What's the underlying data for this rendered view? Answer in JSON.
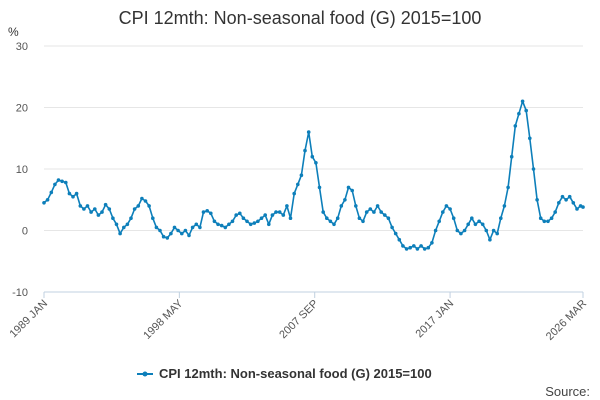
{
  "chart_data": {
    "type": "line",
    "title": "CPI 12mth: Non-seasonal food (G) 2015=100",
    "unit_label": "%",
    "source_label": "Source:",
    "ylim": [
      -10,
      30
    ],
    "y_ticks": [
      "-10",
      "0",
      "10",
      "20",
      "30"
    ],
    "x_range": [
      "1989-01",
      "2026-03"
    ],
    "x_ticks": [
      {
        "label": "1989 JAN",
        "date": "1989-01"
      },
      {
        "label": "1998 MAY",
        "date": "1998-05"
      },
      {
        "label": "2007 SEP",
        "date": "2007-09"
      },
      {
        "label": "2017 JAN",
        "date": "2017-01"
      },
      {
        "label": "2026 MAR",
        "date": "2026-03"
      }
    ],
    "grid": true,
    "legend_position": "bottom",
    "series_color": "#0d7fba",
    "series": [
      {
        "name": "CPI 12mth: Non-seasonal food (G) 2015=100",
        "points": [
          [
            "1989-01",
            4.5
          ],
          [
            "1989-04",
            5.0
          ],
          [
            "1989-07",
            6.2
          ],
          [
            "1989-10",
            7.5
          ],
          [
            "1990-01",
            8.2
          ],
          [
            "1990-04",
            8.0
          ],
          [
            "1990-07",
            7.8
          ],
          [
            "1990-10",
            6.0
          ],
          [
            "1991-01",
            5.5
          ],
          [
            "1991-04",
            6.0
          ],
          [
            "1991-07",
            4.0
          ],
          [
            "1991-10",
            3.5
          ],
          [
            "1992-01",
            4.0
          ],
          [
            "1992-04",
            3.0
          ],
          [
            "1992-07",
            3.5
          ],
          [
            "1992-10",
            2.5
          ],
          [
            "1993-01",
            3.0
          ],
          [
            "1993-04",
            4.2
          ],
          [
            "1993-07",
            3.5
          ],
          [
            "1993-10",
            2.0
          ],
          [
            "1994-01",
            1.0
          ],
          [
            "1994-04",
            -0.5
          ],
          [
            "1994-07",
            0.5
          ],
          [
            "1994-10",
            1.0
          ],
          [
            "1995-01",
            2.0
          ],
          [
            "1995-04",
            3.5
          ],
          [
            "1995-07",
            4.0
          ],
          [
            "1995-10",
            5.2
          ],
          [
            "1996-01",
            4.8
          ],
          [
            "1996-04",
            4.0
          ],
          [
            "1996-07",
            2.0
          ],
          [
            "1996-10",
            0.5
          ],
          [
            "1997-01",
            0.0
          ],
          [
            "1997-04",
            -1.0
          ],
          [
            "1997-07",
            -1.2
          ],
          [
            "1997-10",
            -0.5
          ],
          [
            "1998-01",
            0.5
          ],
          [
            "1998-04",
            0.0
          ],
          [
            "1998-07",
            -0.5
          ],
          [
            "1998-10",
            0.0
          ],
          [
            "1999-01",
            -0.8
          ],
          [
            "1999-04",
            0.5
          ],
          [
            "1999-07",
            1.0
          ],
          [
            "1999-10",
            0.5
          ],
          [
            "2000-01",
            3.0
          ],
          [
            "2000-04",
            3.2
          ],
          [
            "2000-07",
            2.8
          ],
          [
            "2000-10",
            1.5
          ],
          [
            "2001-01",
            1.0
          ],
          [
            "2001-04",
            0.8
          ],
          [
            "2001-07",
            0.5
          ],
          [
            "2001-10",
            1.0
          ],
          [
            "2002-01",
            1.5
          ],
          [
            "2002-04",
            2.5
          ],
          [
            "2002-07",
            2.8
          ],
          [
            "2002-10",
            2.0
          ],
          [
            "2003-01",
            1.5
          ],
          [
            "2003-04",
            1.0
          ],
          [
            "2003-07",
            1.2
          ],
          [
            "2003-10",
            1.5
          ],
          [
            "2004-01",
            2.0
          ],
          [
            "2004-04",
            2.5
          ],
          [
            "2004-07",
            1.0
          ],
          [
            "2004-10",
            2.5
          ],
          [
            "2005-01",
            3.0
          ],
          [
            "2005-04",
            3.0
          ],
          [
            "2005-07",
            2.5
          ],
          [
            "2005-10",
            4.0
          ],
          [
            "2006-01",
            2.0
          ],
          [
            "2006-04",
            6.0
          ],
          [
            "2006-07",
            7.5
          ],
          [
            "2006-10",
            9.0
          ],
          [
            "2007-01",
            13.0
          ],
          [
            "2007-04",
            16.0
          ],
          [
            "2007-07",
            12.0
          ],
          [
            "2007-10",
            11.0
          ],
          [
            "2008-01",
            7.0
          ],
          [
            "2008-04",
            3.0
          ],
          [
            "2008-07",
            2.0
          ],
          [
            "2008-10",
            1.5
          ],
          [
            "2009-01",
            1.0
          ],
          [
            "2009-04",
            2.0
          ],
          [
            "2009-07",
            4.0
          ],
          [
            "2009-10",
            5.0
          ],
          [
            "2010-01",
            7.0
          ],
          [
            "2010-04",
            6.5
          ],
          [
            "2010-07",
            4.0
          ],
          [
            "2010-10",
            2.0
          ],
          [
            "2011-01",
            1.5
          ],
          [
            "2011-04",
            3.0
          ],
          [
            "2011-07",
            3.5
          ],
          [
            "2011-10",
            3.0
          ],
          [
            "2012-01",
            4.0
          ],
          [
            "2012-04",
            3.0
          ],
          [
            "2012-07",
            2.5
          ],
          [
            "2012-10",
            2.0
          ],
          [
            "2013-01",
            0.5
          ],
          [
            "2013-04",
            -0.5
          ],
          [
            "2013-07",
            -1.5
          ],
          [
            "2013-10",
            -2.5
          ],
          [
            "2014-01",
            -3.0
          ],
          [
            "2014-04",
            -2.8
          ],
          [
            "2014-07",
            -2.5
          ],
          [
            "2014-10",
            -3.0
          ],
          [
            "2015-01",
            -2.5
          ],
          [
            "2015-04",
            -3.0
          ],
          [
            "2015-07",
            -2.8
          ],
          [
            "2015-10",
            -2.0
          ],
          [
            "2016-01",
            0.0
          ],
          [
            "2016-04",
            1.5
          ],
          [
            "2016-07",
            3.0
          ],
          [
            "2016-10",
            4.0
          ],
          [
            "2017-01",
            3.5
          ],
          [
            "2017-04",
            2.0
          ],
          [
            "2017-07",
            0.0
          ],
          [
            "2017-10",
            -0.5
          ],
          [
            "2018-01",
            0.0
          ],
          [
            "2018-04",
            1.0
          ],
          [
            "2018-07",
            2.0
          ],
          [
            "2018-10",
            1.0
          ],
          [
            "2019-01",
            1.5
          ],
          [
            "2019-04",
            1.0
          ],
          [
            "2019-07",
            0.0
          ],
          [
            "2019-10",
            -1.5
          ],
          [
            "2020-01",
            0.0
          ],
          [
            "2020-04",
            -0.5
          ],
          [
            "2020-07",
            2.0
          ],
          [
            "2020-10",
            4.0
          ],
          [
            "2021-01",
            7.0
          ],
          [
            "2021-04",
            12.0
          ],
          [
            "2021-07",
            17.0
          ],
          [
            "2021-10",
            19.0
          ],
          [
            "2022-01",
            21.0
          ],
          [
            "2022-04",
            19.5
          ],
          [
            "2022-07",
            15.0
          ],
          [
            "2022-10",
            10.0
          ],
          [
            "2023-01",
            5.0
          ],
          [
            "2023-04",
            2.0
          ],
          [
            "2023-07",
            1.5
          ],
          [
            "2023-10",
            1.5
          ],
          [
            "2024-01",
            2.0
          ],
          [
            "2024-04",
            3.0
          ],
          [
            "2024-07",
            4.5
          ],
          [
            "2024-10",
            5.5
          ],
          [
            "2025-01",
            5.0
          ],
          [
            "2025-04",
            5.5
          ],
          [
            "2025-07",
            4.5
          ],
          [
            "2025-10",
            3.5
          ],
          [
            "2026-01",
            4.0
          ],
          [
            "2026-03",
            3.8
          ]
        ]
      }
    ]
  }
}
